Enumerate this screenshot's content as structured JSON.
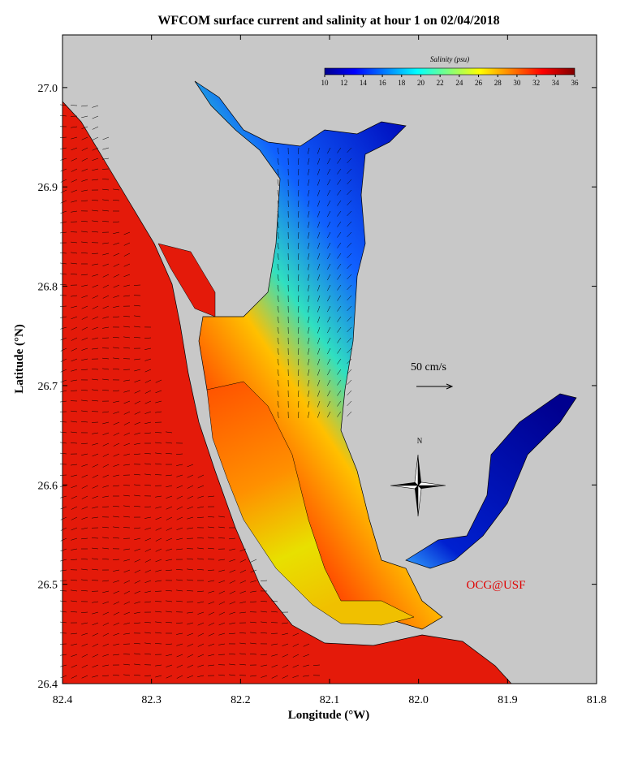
{
  "title": "WFCOM surface current and salinity at hour 1 on 02/04/2018",
  "x_axis": {
    "label": "Longitude (°W)",
    "lim": [
      82.4,
      81.8
    ],
    "ticks": [
      82.4,
      82.3,
      82.2,
      82.1,
      {
        "value": 82,
        "label": "82.0"
      },
      81.9,
      81.8
    ]
  },
  "y_axis": {
    "label": "Latitude (°N)",
    "lim": [
      26.4,
      27.053
    ],
    "ticks": [
      26.4,
      26.5,
      26.6,
      26.7,
      26.8,
      26.9,
      {
        "value": 27,
        "label": "27.0"
      }
    ]
  },
  "colorbar": {
    "label": "Salinity (psu)",
    "lim": [
      10,
      36
    ],
    "ticks": [
      10,
      12,
      14,
      16,
      18,
      20,
      22,
      24,
      26,
      28,
      30,
      32,
      34,
      36
    ]
  },
  "scale_label": "50 cm/s",
  "compass_label": "N",
  "credit": "OCG@USF"
}
